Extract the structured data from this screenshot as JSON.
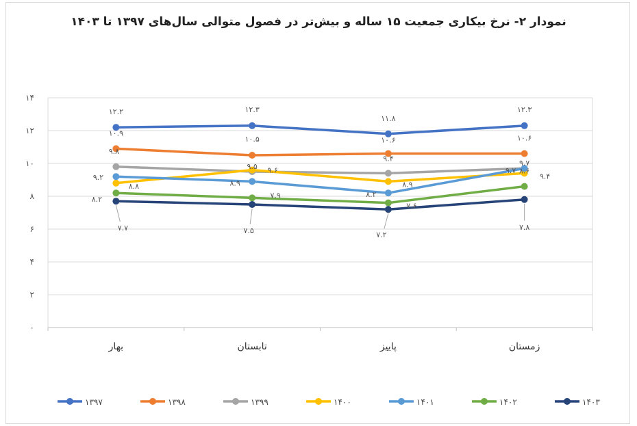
{
  "chart_data": {
    "type": "line",
    "title": "نمودار ۲- نرخ بیکاری جمعیت ۱۵ ساله و بیش‌تر در فصول متوالی سال‌های ۱۳۹۷ تا ۱۴۰۳",
    "categories": [
      "بهار",
      "تابستان",
      "پاییز",
      "زمستان"
    ],
    "ylim": [
      0,
      14
    ],
    "yticks": [
      "۰",
      "۲",
      "۴",
      "۶",
      "۸",
      "۱۰",
      "۱۲",
      "۱۴"
    ],
    "grid": true,
    "legend_position": "bottom",
    "series": [
      {
        "name": "۱۳۹۷",
        "color": "#4472c4",
        "values": [
          12.2,
          12.3,
          11.8,
          12.3
        ],
        "labels": [
          "۱۲.۲",
          "۱۲.۳",
          "۱۱.۸",
          "۱۲.۳"
        ]
      },
      {
        "name": "۱۳۹۸",
        "color": "#ed7d31",
        "values": [
          10.9,
          10.5,
          10.6,
          10.6
        ],
        "labels": [
          "۱۰.۹",
          "۱۰.۵",
          "۱۰.۶",
          "۱۰.۶"
        ]
      },
      {
        "name": "۱۳۹۹",
        "color": "#a5a5a5",
        "values": [
          9.8,
          9.5,
          9.4,
          9.7
        ],
        "labels": [
          "۹.۸",
          "۹.۵",
          "۹.۴",
          "۹.۷"
        ]
      },
      {
        "name": "۱۴۰۰",
        "color": "#ffc000",
        "values": [
          8.8,
          9.6,
          8.9,
          9.4
        ],
        "labels": [
          "۸.۸",
          "۹.۶",
          "۸.۹",
          "۹.۴"
        ]
      },
      {
        "name": "۱۴۰۱",
        "color": "#5b9bd5",
        "values": [
          9.2,
          8.9,
          8.2,
          9.7
        ],
        "labels": [
          "۹.۲",
          "۸.۹",
          "۸.۲",
          "۹.۷"
        ]
      },
      {
        "name": "۱۴۰۲",
        "color": "#70ad47",
        "values": [
          8.2,
          7.9,
          7.6,
          8.6
        ],
        "labels": [
          "۸.۲",
          "۷.۹",
          "۷.۶",
          "۸.۶"
        ]
      },
      {
        "name": "۱۴۰۳",
        "color": "#264478",
        "values": [
          7.7,
          7.5,
          7.2,
          7.8
        ],
        "labels": [
          "۷.۷",
          "۷.۵",
          "۷.۲",
          "۷.۸"
        ]
      }
    ]
  }
}
